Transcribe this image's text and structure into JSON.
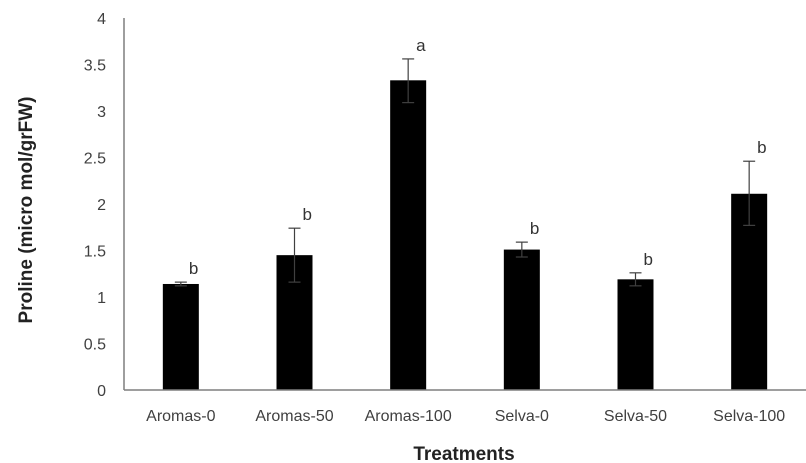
{
  "chart_data": {
    "type": "bar",
    "title": "",
    "xlabel": "Treatments",
    "ylabel": "Proline (micro mol/grFW)",
    "ylim": [
      0,
      4
    ],
    "yticks": [
      "0",
      "0.5",
      "1",
      "1.5",
      "2",
      "2.5",
      "3",
      "3.5",
      "4"
    ],
    "grid": false,
    "categories": [
      "Aromas-0",
      "Aromas-50",
      "Aromas-100",
      "Selva-0",
      "Selva-50",
      "Selva-100"
    ],
    "values": [
      1.14,
      1.45,
      3.33,
      1.51,
      1.19,
      2.11
    ],
    "error_low": [
      1.12,
      1.16,
      3.09,
      1.43,
      1.12,
      1.77
    ],
    "error_high": [
      1.16,
      1.74,
      3.56,
      1.59,
      1.26,
      2.46
    ],
    "significance": [
      "b",
      "b",
      "a",
      "b",
      "b",
      "b"
    ],
    "bar_color": "#000000"
  }
}
